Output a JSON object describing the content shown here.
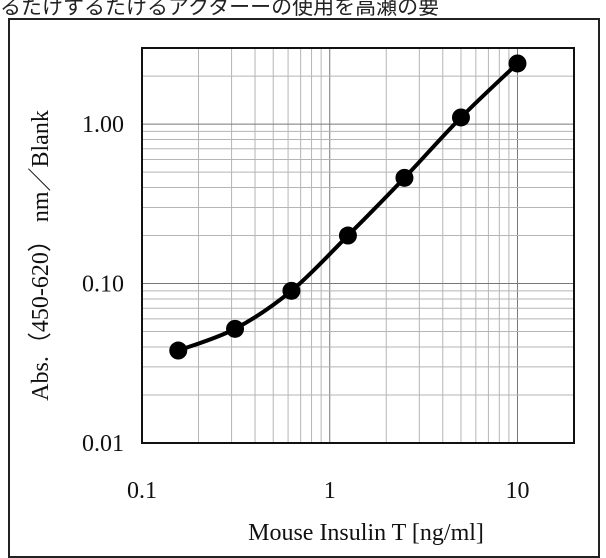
{
  "caption": "るたけするたけるアクターーの使用を高瀬の要",
  "chart_data": {
    "type": "line",
    "xlabel": "Mouse Insulin T [ng/ml]",
    "ylabel": "Abs.（450-620） nm／Blank",
    "x_scale": "log",
    "y_scale": "log",
    "xlim": [
      0.1,
      20
    ],
    "ylim": [
      0.01,
      3
    ],
    "x_ticks": [
      0.1,
      1,
      10
    ],
    "x_tick_labels": [
      "0.1",
      "1",
      "10"
    ],
    "y_ticks": [
      0.01,
      0.1,
      1
    ],
    "y_tick_labels": [
      "0.01",
      "0.10",
      "1.00"
    ],
    "grid": true,
    "legend": "none",
    "series": [
      {
        "x": [
          0.156,
          0.313,
          0.625,
          1.25,
          2.5,
          5,
          10
        ],
        "y": [
          0.038,
          0.052,
          0.09,
          0.2,
          0.46,
          1.1,
          2.4
        ],
        "color": "#000000",
        "marker": "circle"
      }
    ]
  }
}
